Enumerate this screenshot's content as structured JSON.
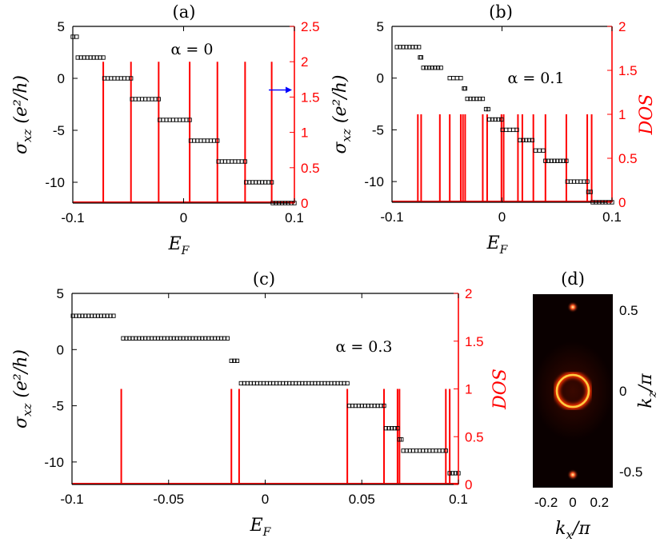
{
  "chart_data": [
    {
      "panel": "(a)",
      "type": "line",
      "annotation": "α = 0",
      "xlabel": "E_F",
      "ylabel": "σ_xz (e²/h)",
      "y2label": "",
      "xlim": [
        -0.1,
        0.1
      ],
      "ylim": [
        -12,
        5
      ],
      "y2lim": [
        0,
        2.5
      ],
      "xticks": [
        "-0.1",
        "0",
        "0.1"
      ],
      "yticks": [
        "5",
        "0",
        "-5",
        "-10"
      ],
      "y2ticks": [
        "2.5",
        "2",
        "1.5",
        "1",
        "0.5",
        "0"
      ],
      "arrow_at_y2": 1.6,
      "series": [
        {
          "type": "step-markers",
          "segments": [
            {
              "x0": -0.1,
              "x1": -0.0965,
              "y": 4
            },
            {
              "x0": -0.0955,
              "x1": -0.0725,
              "y": 2
            },
            {
              "x0": -0.0715,
              "x1": -0.0475,
              "y": 0
            },
            {
              "x0": -0.0465,
              "x1": -0.0225,
              "y": -2
            },
            {
              "x0": -0.0215,
              "x1": 0.0055,
              "y": -4
            },
            {
              "x0": 0.0065,
              "x1": 0.0305,
              "y": -6
            },
            {
              "x0": 0.0315,
              "x1": 0.0555,
              "y": -8
            },
            {
              "x0": 0.0565,
              "x1": 0.0795,
              "y": -10
            },
            {
              "x0": 0.0805,
              "x1": 0.1,
              "y": -12
            }
          ]
        },
        {
          "type": "dos-spikes",
          "axis": "y2",
          "spikes": [
            {
              "x": -0.0725,
              "h": 2.0
            },
            {
              "x": -0.0475,
              "h": 2.0
            },
            {
              "x": -0.0225,
              "h": 2.0
            },
            {
              "x": 0.0055,
              "h": 2.0
            },
            {
              "x": 0.0305,
              "h": 2.0
            },
            {
              "x": 0.0555,
              "h": 2.0
            },
            {
              "x": 0.0795,
              "h": 2.0
            }
          ]
        }
      ]
    },
    {
      "panel": "(b)",
      "type": "line",
      "annotation": "α = 0.1",
      "xlabel": "E_F",
      "ylabel": "σ_xz (e²/h)",
      "y2label": "DOS",
      "xlim": [
        -0.1,
        0.1
      ],
      "ylim": [
        -12,
        5
      ],
      "y2lim": [
        0,
        2
      ],
      "xticks": [
        "-0.1",
        "0",
        "0.1"
      ],
      "yticks": [
        "5",
        "0",
        "-5",
        "-10"
      ],
      "y2ticks": [
        "2",
        "1.5",
        "1",
        "0.5",
        "0"
      ],
      "series": [
        {
          "type": "step-markers",
          "segments": [
            {
              "x0": -0.0955,
              "x1": -0.0755,
              "y": 3
            },
            {
              "x0": -0.0745,
              "x1": -0.0735,
              "y": 2
            },
            {
              "x0": -0.0715,
              "x1": -0.0555,
              "y": 1
            },
            {
              "x0": -0.0475,
              "x1": -0.0375,
              "y": 0
            },
            {
              "x0": -0.0345,
              "x1": -0.0335,
              "y": -1
            },
            {
              "x0": -0.0315,
              "x1": -0.0175,
              "y": -2
            },
            {
              "x0": -0.0145,
              "x1": -0.0125,
              "y": -3
            },
            {
              "x0": -0.0115,
              "x1": -0.0005,
              "y": -4
            },
            {
              "x0": 0.0005,
              "x1": 0.0135,
              "y": -5
            },
            {
              "x0": 0.0165,
              "x1": 0.0275,
              "y": -6
            },
            {
              "x0": 0.0305,
              "x1": 0.0375,
              "y": -7
            },
            {
              "x0": 0.0395,
              "x1": 0.0585,
              "y": -8
            },
            {
              "x0": 0.0595,
              "x1": 0.0775,
              "y": -10
            },
            {
              "x0": 0.0785,
              "x1": 0.0805,
              "y": -11
            },
            {
              "x0": 0.0825,
              "x1": 0.1,
              "y": -12
            }
          ]
        },
        {
          "type": "dos-spikes",
          "axis": "y2",
          "spikes": [
            {
              "x": -0.0765,
              "h": 1.0
            },
            {
              "x": -0.0735,
              "h": 1.0
            },
            {
              "x": -0.0565,
              "h": 1.0
            },
            {
              "x": -0.0475,
              "h": 1.0
            },
            {
              "x": -0.0375,
              "h": 1.0
            },
            {
              "x": -0.0355,
              "h": 1.0
            },
            {
              "x": -0.0335,
              "h": 1.0
            },
            {
              "x": -0.0175,
              "h": 1.0
            },
            {
              "x": -0.0135,
              "h": 1.0
            },
            {
              "x": -0.0005,
              "h": 1.0
            },
            {
              "x": 0.0015,
              "h": 1.0
            },
            {
              "x": 0.0145,
              "h": 1.0
            },
            {
              "x": 0.0185,
              "h": 1.0
            },
            {
              "x": 0.0285,
              "h": 1.0
            },
            {
              "x": 0.0395,
              "h": 1.0
            },
            {
              "x": 0.0585,
              "h": 1.0
            },
            {
              "x": 0.0775,
              "h": 1.0
            },
            {
              "x": 0.0815,
              "h": 1.0
            }
          ]
        }
      ]
    },
    {
      "panel": "(c)",
      "type": "line",
      "annotation": "α = 0.3",
      "xlabel": "E_F",
      "ylabel": "σ_xz (e²/h)",
      "y2label": "DOS",
      "xlim": [
        -0.1,
        0.1
      ],
      "ylim": [
        -12,
        5
      ],
      "y2lim": [
        0,
        2
      ],
      "xticks": [
        "-0.1",
        "-0.05",
        "0",
        "0.05",
        "0.1"
      ],
      "yticks": [
        "5",
        "0",
        "-5",
        "-10"
      ],
      "y2ticks": [
        "2",
        "1.5",
        "1",
        "0.5",
        "0"
      ],
      "series": [
        {
          "type": "step-markers",
          "segments": [
            {
              "x0": -0.0995,
              "x1": -0.0785,
              "y": 3
            },
            {
              "x0": -0.0735,
              "x1": -0.0195,
              "y": 1
            },
            {
              "x0": -0.0175,
              "x1": -0.0145,
              "y": -1
            },
            {
              "x0": -0.0125,
              "x1": 0.0425,
              "y": -3
            },
            {
              "x0": 0.0435,
              "x1": 0.0615,
              "y": -5
            },
            {
              "x0": 0.0625,
              "x1": 0.0685,
              "y": -7
            },
            {
              "x0": 0.0695,
              "x1": 0.0705,
              "y": -8
            },
            {
              "x0": 0.0715,
              "x1": 0.0935,
              "y": -9
            },
            {
              "x0": 0.0955,
              "x1": 0.1,
              "y": -11
            }
          ]
        },
        {
          "type": "dos-spikes",
          "axis": "y2",
          "spikes": [
            {
              "x": -0.0745,
              "h": 1.0
            },
            {
              "x": -0.0175,
              "h": 1.0
            },
            {
              "x": -0.0135,
              "h": 1.0
            },
            {
              "x": 0.0425,
              "h": 1.0
            },
            {
              "x": 0.0615,
              "h": 1.0
            },
            {
              "x": 0.0685,
              "h": 1.0
            },
            {
              "x": 0.0695,
              "h": 1.0
            },
            {
              "x": 0.0935,
              "h": 1.0
            },
            {
              "x": 0.0955,
              "h": 1.0
            }
          ]
        }
      ]
    },
    {
      "panel": "(d)",
      "type": "heatmap",
      "xlabel": "k_x/π",
      "ylabel": "k_z/π",
      "xlim": [
        -0.3,
        0.3
      ],
      "ylim": [
        -0.6,
        0.6
      ],
      "xticks": [
        "-0.2",
        "0",
        "0.2"
      ],
      "yticks": [
        "0.5",
        "0",
        "-0.5"
      ],
      "features": [
        {
          "kind": "ring",
          "cx": 0,
          "cy": 0,
          "r": 0.12
        },
        {
          "kind": "spot",
          "cx": 0,
          "cy": 0.52
        },
        {
          "kind": "spot",
          "cx": 0,
          "cy": -0.52
        }
      ]
    }
  ],
  "colors": {
    "step": "#000000",
    "dos": "#ff0000",
    "axis_right": "#ff0000",
    "arrow": "#0000ff",
    "heat_ring": "#ffcc40",
    "heat_bg": "#0a0000"
  }
}
